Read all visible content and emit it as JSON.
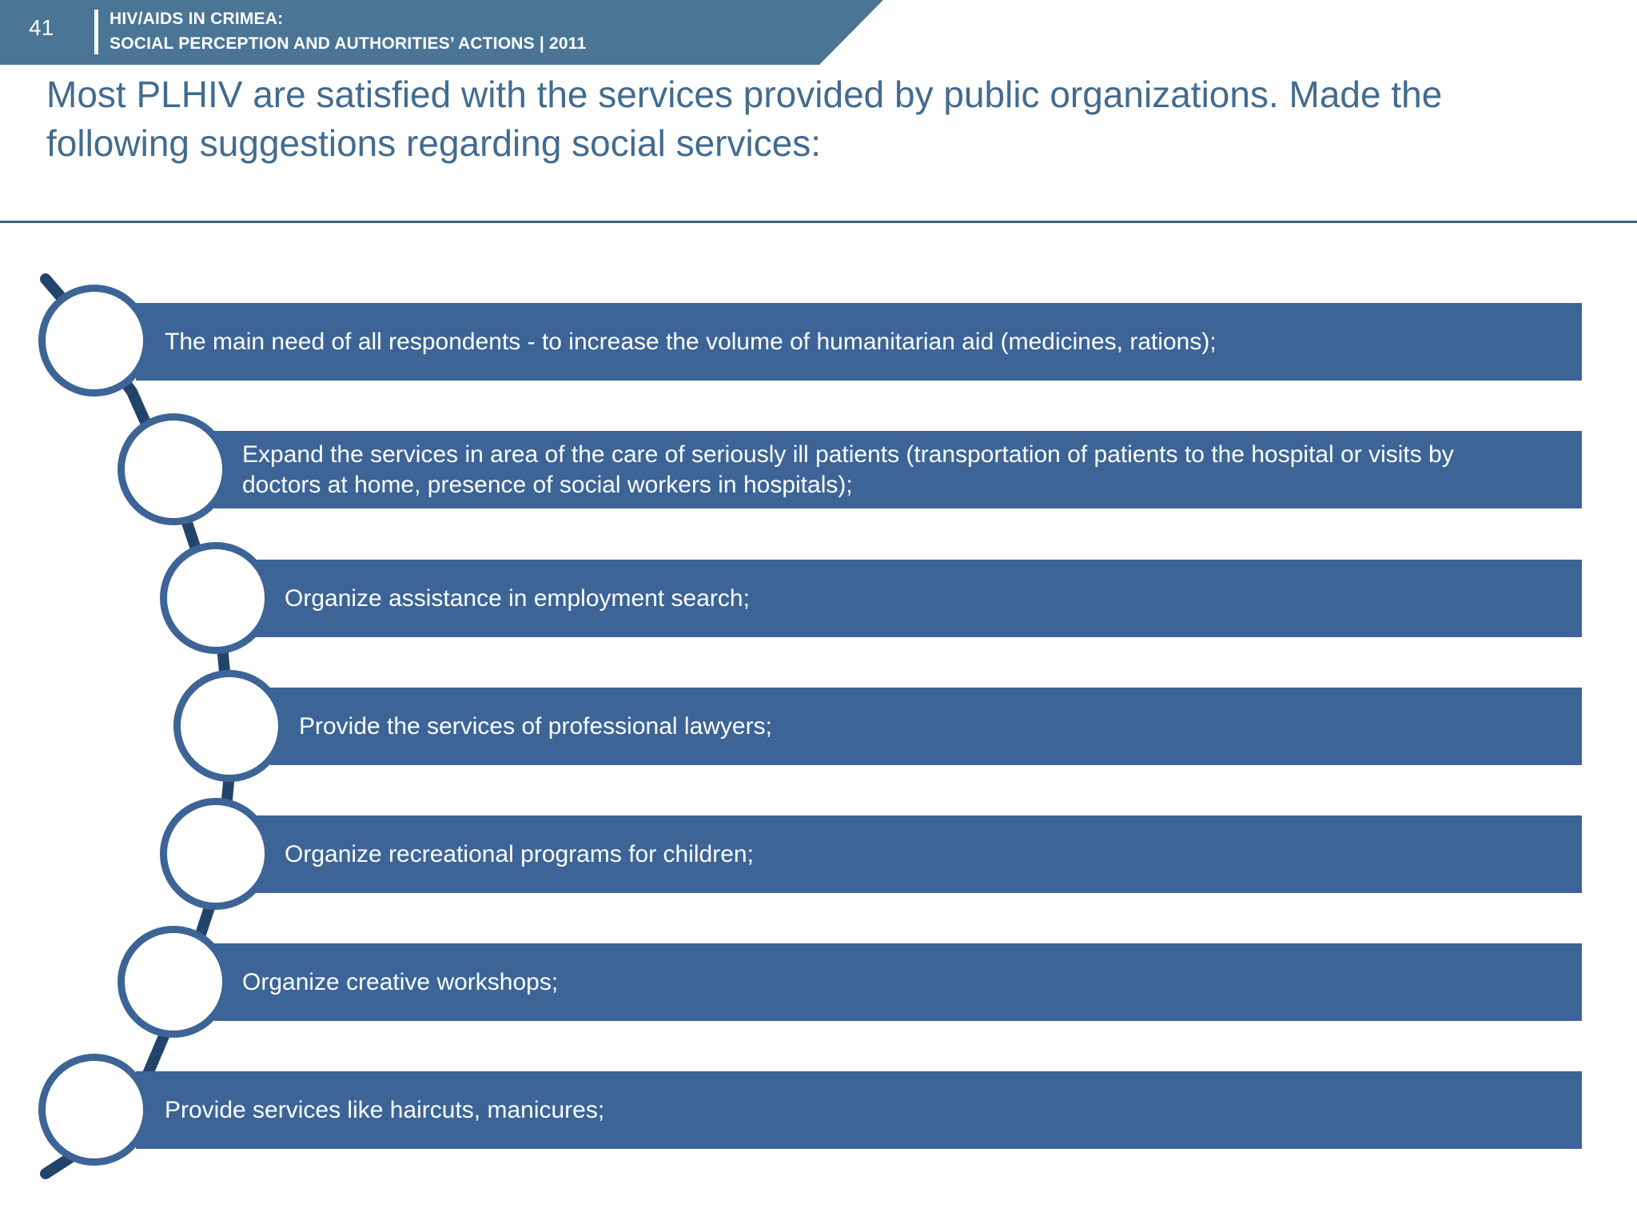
{
  "header": {
    "slide_number": "41",
    "line1": "HIV/AIDS IN CRIMEA:",
    "line2": "SOCIAL PERCEPTION AND AUTHORITIES’ ACTIONS  |  2011",
    "band_color": "#4a7595"
  },
  "title": "Most PLHIV are satisfied with the services provided by public organizations. Made the following suggestions regarding social services:",
  "colors": {
    "title": "#426b8f",
    "bar": "#3c6496",
    "connector": "#22446b"
  },
  "suggestions": [
    "The main need of all respondents - to increase the volume of humanitarian aid (medicines, rations);",
    "Expand the services in area of the care of seriously ill patients (transportation of patients to the hospital or  visits by doctors at home, presence of social workers in hospitals);",
    "Organize assistance in employment search;",
    "Provide the services of professional lawyers;",
    "Organize recreational programs for children;",
    "Organize creative workshops;",
    "Provide services like haircuts, manicures;"
  ]
}
